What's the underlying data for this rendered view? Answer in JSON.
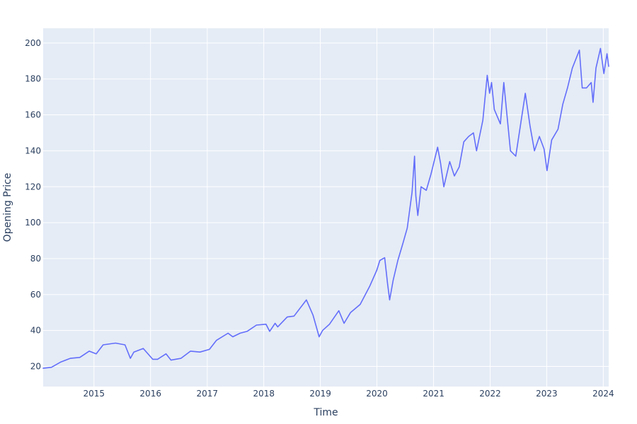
{
  "chart_data": {
    "type": "line",
    "title": "",
    "xlabel": "Time",
    "ylabel": "Opening Price",
    "xlim": [
      "2014-02-07",
      "2024-02-05"
    ],
    "ylim": [
      8.8,
      208.2
    ],
    "grid": true,
    "legend": "none",
    "colors": {
      "plot_bg": "#E5ECF6",
      "line": "#636EFA",
      "grid": "#FFFFFF",
      "text": "#2a3f5f"
    },
    "x_ticks": [
      {
        "value": "2015-01-01",
        "label": "2015"
      },
      {
        "value": "2016-01-01",
        "label": "2016"
      },
      {
        "value": "2017-01-01",
        "label": "2017"
      },
      {
        "value": "2018-01-01",
        "label": "2018"
      },
      {
        "value": "2019-01-01",
        "label": "2019"
      },
      {
        "value": "2020-01-01",
        "label": "2020"
      },
      {
        "value": "2021-01-01",
        "label": "2021"
      },
      {
        "value": "2022-01-01",
        "label": "2022"
      },
      {
        "value": "2023-01-01",
        "label": "2023"
      },
      {
        "value": "2024-01-01",
        "label": "2024"
      }
    ],
    "y_ticks": [
      20,
      40,
      60,
      80,
      100,
      120,
      140,
      160,
      180,
      200
    ],
    "series": [
      {
        "x": [
          "2014-02-07",
          "2014-04-01",
          "2014-06-01",
          "2014-08-01",
          "2014-10-01",
          "2014-12-01",
          "2015-01-15",
          "2015-03-01",
          "2015-05-20",
          "2015-07-20",
          "2015-08-24",
          "2015-09-15",
          "2015-11-15",
          "2016-01-15",
          "2016-02-15",
          "2016-04-10",
          "2016-05-12",
          "2016-07-15",
          "2016-09-15",
          "2016-11-15",
          "2017-01-15",
          "2017-03-01",
          "2017-05-15",
          "2017-06-15",
          "2017-08-01",
          "2017-09-15",
          "2017-11-15",
          "2018-01-15",
          "2018-02-08",
          "2018-03-15",
          "2018-04-01",
          "2018-06-01",
          "2018-07-15",
          "2018-09-15",
          "2018-10-03",
          "2018-11-15",
          "2018-12-24",
          "2019-01-15",
          "2019-03-01",
          "2019-04-30",
          "2019-06-03",
          "2019-07-15",
          "2019-09-15",
          "2019-11-15",
          "2019-12-31",
          "2020-01-20",
          "2020-02-20",
          "2020-03-10",
          "2020-03-16",
          "2020-03-23",
          "2020-04-15",
          "2020-05-15",
          "2020-06-15",
          "2020-07-15",
          "2020-08-15",
          "2020-08-31",
          "2020-09-08",
          "2020-09-21",
          "2020-10-12",
          "2020-11-15",
          "2020-12-15",
          "2021-01-27",
          "2021-02-15",
          "2021-03-08",
          "2021-04-15",
          "2021-05-15",
          "2021-06-15",
          "2021-07-15",
          "2021-08-15",
          "2021-09-15",
          "2021-10-05",
          "2021-11-15",
          "2021-12-13",
          "2021-12-28",
          "2022-01-10",
          "2022-01-28",
          "2022-03-08",
          "2022-03-30",
          "2022-05-12",
          "2022-06-15",
          "2022-08-16",
          "2022-09-15",
          "2022-10-14",
          "2022-11-15",
          "2022-12-15",
          "2023-01-03",
          "2023-02-02",
          "2023-03-15",
          "2023-04-15",
          "2023-05-15",
          "2023-06-15",
          "2023-07-31",
          "2023-08-18",
          "2023-09-15",
          "2023-10-15",
          "2023-10-27",
          "2023-11-15",
          "2023-12-14",
          "2024-01-05",
          "2024-01-25",
          "2024-02-05"
        ],
        "values": [
          19,
          19.5,
          22.5,
          24.5,
          25,
          28.5,
          27,
          32,
          33,
          32,
          24.5,
          28,
          30,
          24,
          24,
          27,
          23.5,
          24.5,
          28.5,
          28,
          29.5,
          34.5,
          38.5,
          36.5,
          38.5,
          39.5,
          43,
          43.5,
          39.5,
          44,
          42,
          47.5,
          48,
          55,
          57,
          48.5,
          36.5,
          40,
          43.5,
          51,
          44,
          50,
          54.5,
          64.5,
          73.5,
          79,
          80.5,
          66,
          62,
          57,
          68,
          79,
          88,
          97,
          117,
          137,
          115,
          104,
          120,
          118,
          127,
          142,
          133,
          120,
          134,
          126,
          131,
          145,
          148,
          150,
          140,
          157,
          182,
          172,
          178,
          163,
          155,
          178,
          140,
          137,
          172,
          154,
          140,
          148,
          141,
          129,
          146,
          152,
          166,
          175,
          186,
          196,
          175,
          175,
          178,
          167,
          186,
          197,
          183,
          194,
          187
        ]
      }
    ]
  }
}
